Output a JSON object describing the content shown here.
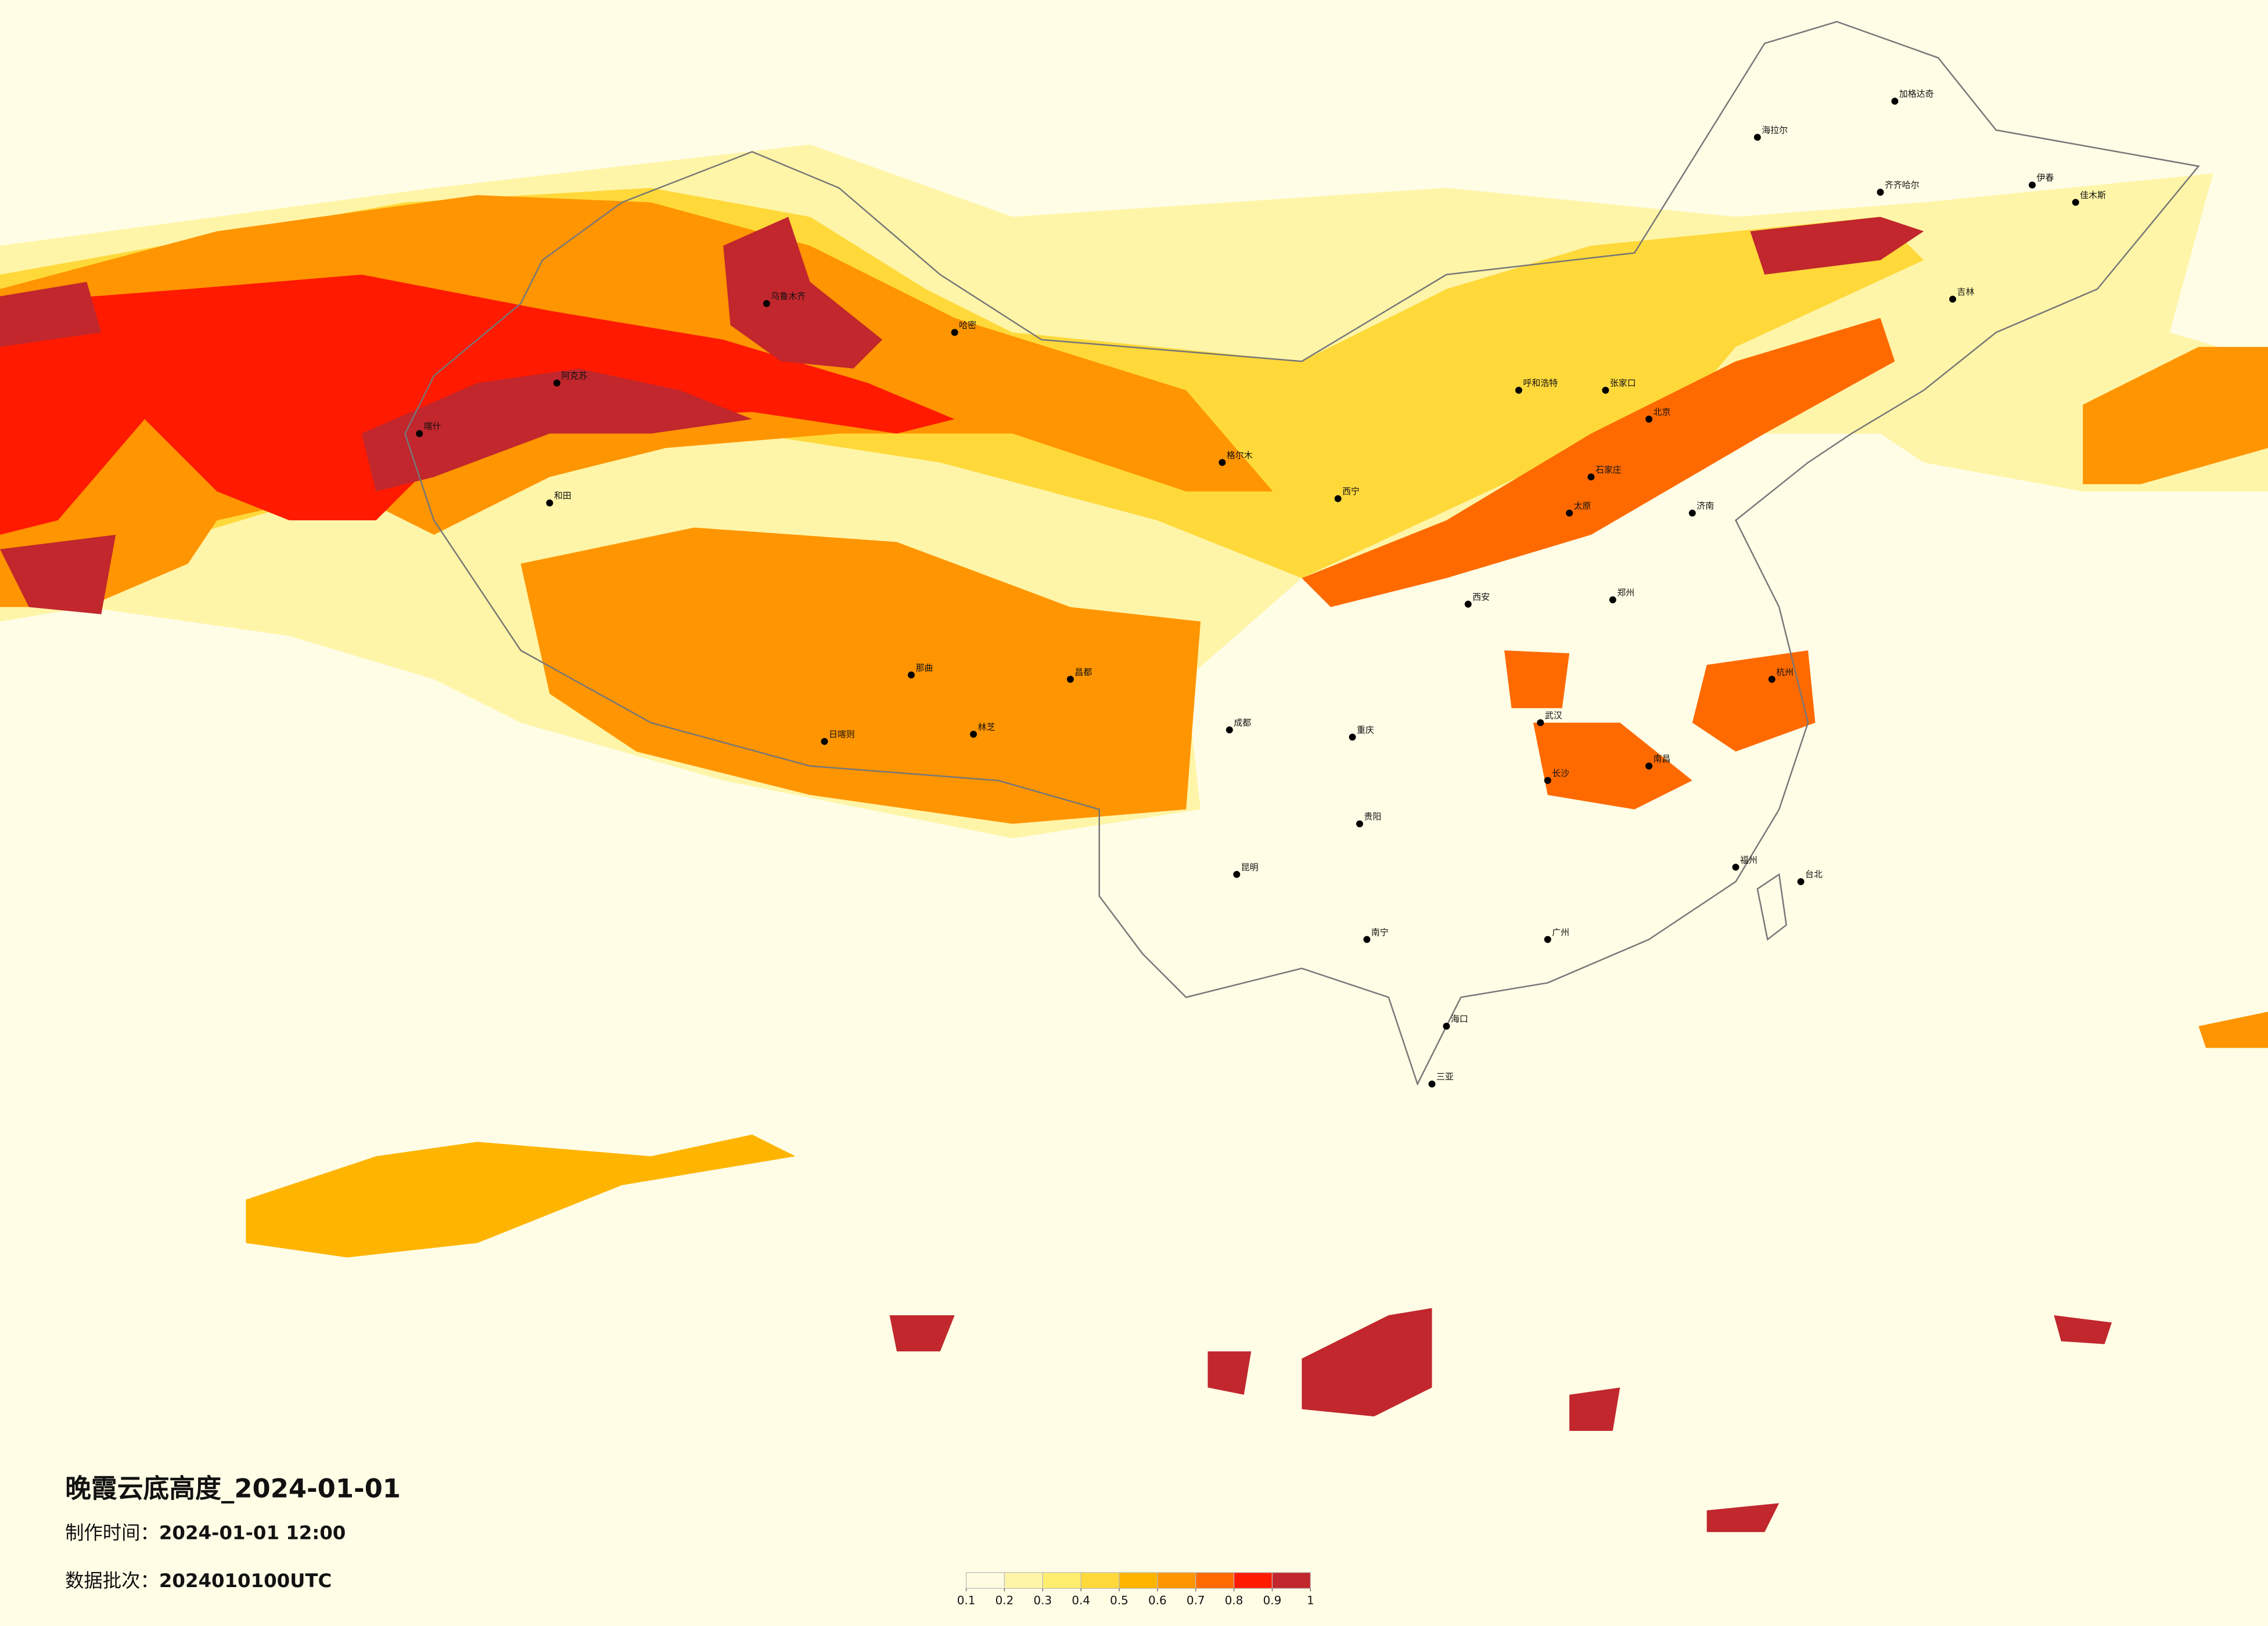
{
  "title": "晚霞云底高度_2024-01-01",
  "production_time": {
    "label": "制作时间：",
    "value": "2024-01-01 12:00"
  },
  "data_batch": {
    "label": "数据批次：",
    "value": "2024010100UTC"
  },
  "colorbar": {
    "ticks": [
      0.1,
      0.2,
      0.3,
      0.4,
      0.5,
      0.6,
      0.7,
      0.8,
      0.9,
      1
    ],
    "colors": [
      "#fffbe0",
      "#fff5a8",
      "#ffee6e",
      "#ffd93a",
      "#ffb400",
      "#ff9500",
      "#ff6a00",
      "#ff1a00",
      "#c1272d"
    ]
  },
  "cities": [
    {
      "name": "加格达奇"
    },
    {
      "name": "海拉尔"
    },
    {
      "name": "齐齐哈尔"
    },
    {
      "name": "伊春"
    },
    {
      "name": "佳木斯"
    },
    {
      "name": "吉林"
    },
    {
      "name": "呼和浩特"
    },
    {
      "name": "张家口"
    },
    {
      "name": "北京"
    },
    {
      "name": "石家庄"
    },
    {
      "name": "太原"
    },
    {
      "name": "济南"
    },
    {
      "name": "郑州"
    },
    {
      "name": "西安"
    },
    {
      "name": "西宁"
    },
    {
      "name": "格尔木"
    },
    {
      "name": "哈密"
    },
    {
      "name": "乌鲁木齐"
    },
    {
      "name": "阿克苏"
    },
    {
      "name": "喀什"
    },
    {
      "name": "和田"
    },
    {
      "name": "那曲"
    },
    {
      "name": "日喀则"
    },
    {
      "name": "林芝"
    },
    {
      "name": "昌都"
    },
    {
      "name": "成都"
    },
    {
      "name": "重庆"
    },
    {
      "name": "贵阳"
    },
    {
      "name": "昆明"
    },
    {
      "name": "南宁"
    },
    {
      "name": "长沙"
    },
    {
      "name": "武汉"
    },
    {
      "name": "南昌"
    },
    {
      "name": "杭州"
    },
    {
      "name": "福州"
    },
    {
      "name": "广州"
    },
    {
      "name": "台北"
    },
    {
      "name": "海口"
    },
    {
      "name": "三亚"
    }
  ]
}
